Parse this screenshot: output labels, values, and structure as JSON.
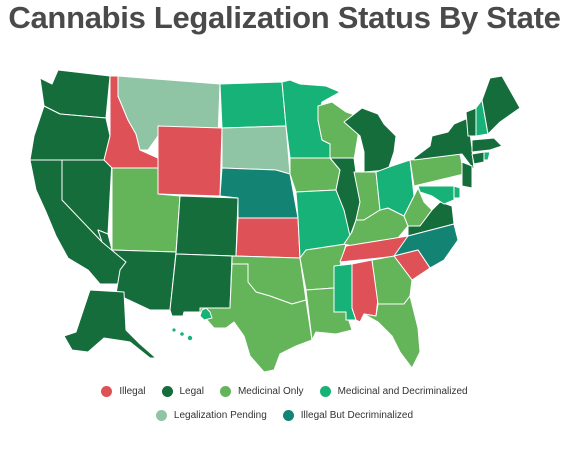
{
  "title": "Cannabis Legalization Status By State",
  "colors": {
    "illegal": "#dd5157",
    "legal": "#156d3b",
    "medicinal": "#64b55a",
    "medicinal_decrim": "#17b277",
    "pending": "#8fc5a4",
    "illegal_decrim": "#138474"
  },
  "legend": [
    {
      "key": "illegal",
      "label": "Illegal"
    },
    {
      "key": "legal",
      "label": "Legal"
    },
    {
      "key": "medicinal",
      "label": "Medicinal Only"
    },
    {
      "key": "medicinal_decrim",
      "label": "Medicinal and Decriminalized"
    },
    {
      "key": "pending",
      "label": "Legalization Pending"
    },
    {
      "key": "illegal_decrim",
      "label": "Illegal But Decriminalized"
    }
  ],
  "states": {
    "WA": "legal",
    "OR": "legal",
    "CA": "legal",
    "NV": "legal",
    "ID": "illegal",
    "MT": "pending",
    "WY": "illegal",
    "UT": "medicinal",
    "AZ": "legal",
    "CO": "legal",
    "NM": "legal",
    "ND": "medicinal_decrim",
    "SD": "pending",
    "NE": "illegal_decrim",
    "KS": "illegal",
    "OK": "medicinal",
    "TX": "medicinal",
    "MN": "medicinal_decrim",
    "IA": "medicinal",
    "MO": "medicinal_decrim",
    "AR": "medicinal",
    "LA": "medicinal",
    "WI": "medicinal",
    "IL": "legal",
    "MS": "medicinal_decrim",
    "MI": "legal",
    "IN": "medicinal",
    "KY": "medicinal",
    "TN": "illegal",
    "AL": "illegal",
    "OH": "medicinal_decrim",
    "WV": "medicinal",
    "VA": "legal",
    "NC": "illegal_decrim",
    "SC": "illegal",
    "GA": "medicinal",
    "FL": "medicinal",
    "PA": "medicinal",
    "NY": "legal",
    "VT": "legal",
    "NH": "medicinal_decrim",
    "ME": "legal",
    "MA": "legal",
    "RI": "medicinal_decrim",
    "CT": "legal",
    "NJ": "legal",
    "DE": "medicinal_decrim",
    "MD": "medicinal_decrim",
    "AK": "legal",
    "HI": "medicinal_decrim"
  }
}
